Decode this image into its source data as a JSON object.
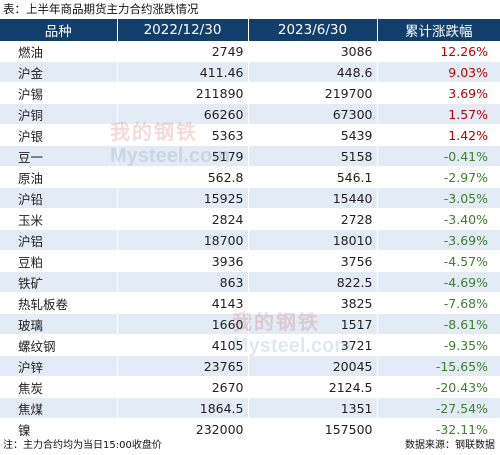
{
  "title": "表：上半年商品期货主力合约涨跌情况",
  "table": {
    "headers": [
      "品种",
      "2022/12/30",
      "2023/6/30",
      "累计涨跌幅"
    ],
    "rows": [
      {
        "name": "燃油",
        "v1": "2749",
        "v2": "3086",
        "pct": "12.26%",
        "dir": "up"
      },
      {
        "name": "沪金",
        "v1": "411.46",
        "v2": "448.6",
        "pct": "9.03%",
        "dir": "up"
      },
      {
        "name": "沪锡",
        "v1": "211890",
        "v2": "219700",
        "pct": "3.69%",
        "dir": "up"
      },
      {
        "name": "沪铜",
        "v1": "66260",
        "v2": "67300",
        "pct": "1.57%",
        "dir": "up"
      },
      {
        "name": "沪银",
        "v1": "5363",
        "v2": "5439",
        "pct": "1.42%",
        "dir": "up"
      },
      {
        "name": "豆一",
        "v1": "5179",
        "v2": "5158",
        "pct": "-0.41%",
        "dir": "down"
      },
      {
        "name": "原油",
        "v1": "562.8",
        "v2": "546.1",
        "pct": "-2.97%",
        "dir": "down"
      },
      {
        "name": "沪铅",
        "v1": "15925",
        "v2": "15440",
        "pct": "-3.05%",
        "dir": "down"
      },
      {
        "name": "玉米",
        "v1": "2824",
        "v2": "2728",
        "pct": "-3.40%",
        "dir": "down"
      },
      {
        "name": "沪铝",
        "v1": "18700",
        "v2": "18010",
        "pct": "-3.69%",
        "dir": "down"
      },
      {
        "name": "豆粕",
        "v1": "3936",
        "v2": "3756",
        "pct": "-4.57%",
        "dir": "down"
      },
      {
        "name": "铁矿",
        "v1": "863",
        "v2": "822.5",
        "pct": "-4.69%",
        "dir": "down"
      },
      {
        "name": "热轧板卷",
        "v1": "4143",
        "v2": "3825",
        "pct": "-7.68%",
        "dir": "down"
      },
      {
        "name": "玻璃",
        "v1": "1660",
        "v2": "1517",
        "pct": "-8.61%",
        "dir": "down"
      },
      {
        "name": "螺纹钢",
        "v1": "4105",
        "v2": "3721",
        "pct": "-9.35%",
        "dir": "down"
      },
      {
        "name": "沪锌",
        "v1": "23765",
        "v2": "20045",
        "pct": "-15.65%",
        "dir": "down"
      },
      {
        "name": "焦炭",
        "v1": "2670",
        "v2": "2124.5",
        "pct": "-20.43%",
        "dir": "down"
      },
      {
        "name": "焦煤",
        "v1": "1864.5",
        "v2": "1351",
        "pct": "-27.54%",
        "dir": "down"
      },
      {
        "name": "镍",
        "v1": "232000",
        "v2": "157500",
        "pct": "-32.11%",
        "dir": "down"
      }
    ]
  },
  "colors": {
    "header_bg": "#123e6b",
    "stripe": "#e2ebf6",
    "up": "#c00000",
    "down": "#3d7f2f"
  },
  "watermark": {
    "top": "我的钢铁",
    "bottom": "Mysteel.com"
  },
  "footer": {
    "note": "注：主力合约均为当日15:00收盘价",
    "source": "数据来源：钢联数据"
  }
}
